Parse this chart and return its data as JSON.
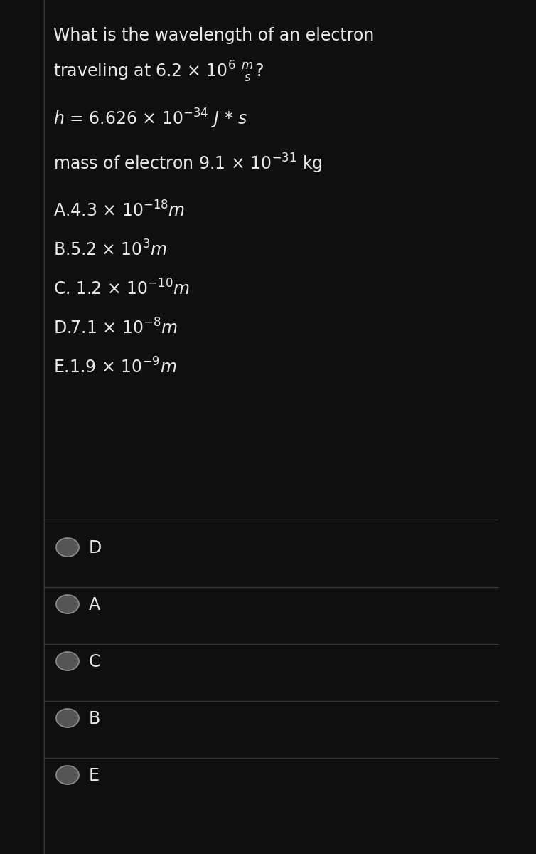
{
  "background_color": "#0f0f0f",
  "text_color": "#e8e8e8",
  "divider_color": "#3a3a3a",
  "circle_face_color": "#555555",
  "circle_edge_color": "#888888",
  "left_border_color": "#555555",
  "question_line1": "What is the wavelength of an electron",
  "question_line2_plain": "traveling at 6.2 ",
  "question_line2_math": "\\times 10^{6} \\frac{m}{s}",
  "question_line2_end": "?",
  "given_line1_plain": "h = 6.626 ",
  "given_line1_math": "\\times 10^{-34} J * s",
  "given_line2_plain": "mass of electron 9.1 ",
  "given_line2_math": "\\times 10^{-31}",
  "given_line2_end": " kg",
  "answers": [
    {
      "label": "A.",
      "main": "4.3 ",
      "exp": "-18",
      "unit": "m"
    },
    {
      "label": "B.",
      "main": "5.2 ",
      "exp": "3",
      "unit": "m"
    },
    {
      "label": "C. ",
      "main": "1.2 ",
      "exp": "-10",
      "unit": "m"
    },
    {
      "label": "D.",
      "main": "7.1 ",
      "exp": "-8",
      "unit": "m"
    },
    {
      "label": "E.",
      "main": "1.9 ",
      "exp": "-9",
      "unit": "m"
    }
  ],
  "radio_options": [
    "D",
    "A",
    "C",
    "B",
    "E"
  ],
  "font_size_main": 17,
  "font_size_radio": 17
}
